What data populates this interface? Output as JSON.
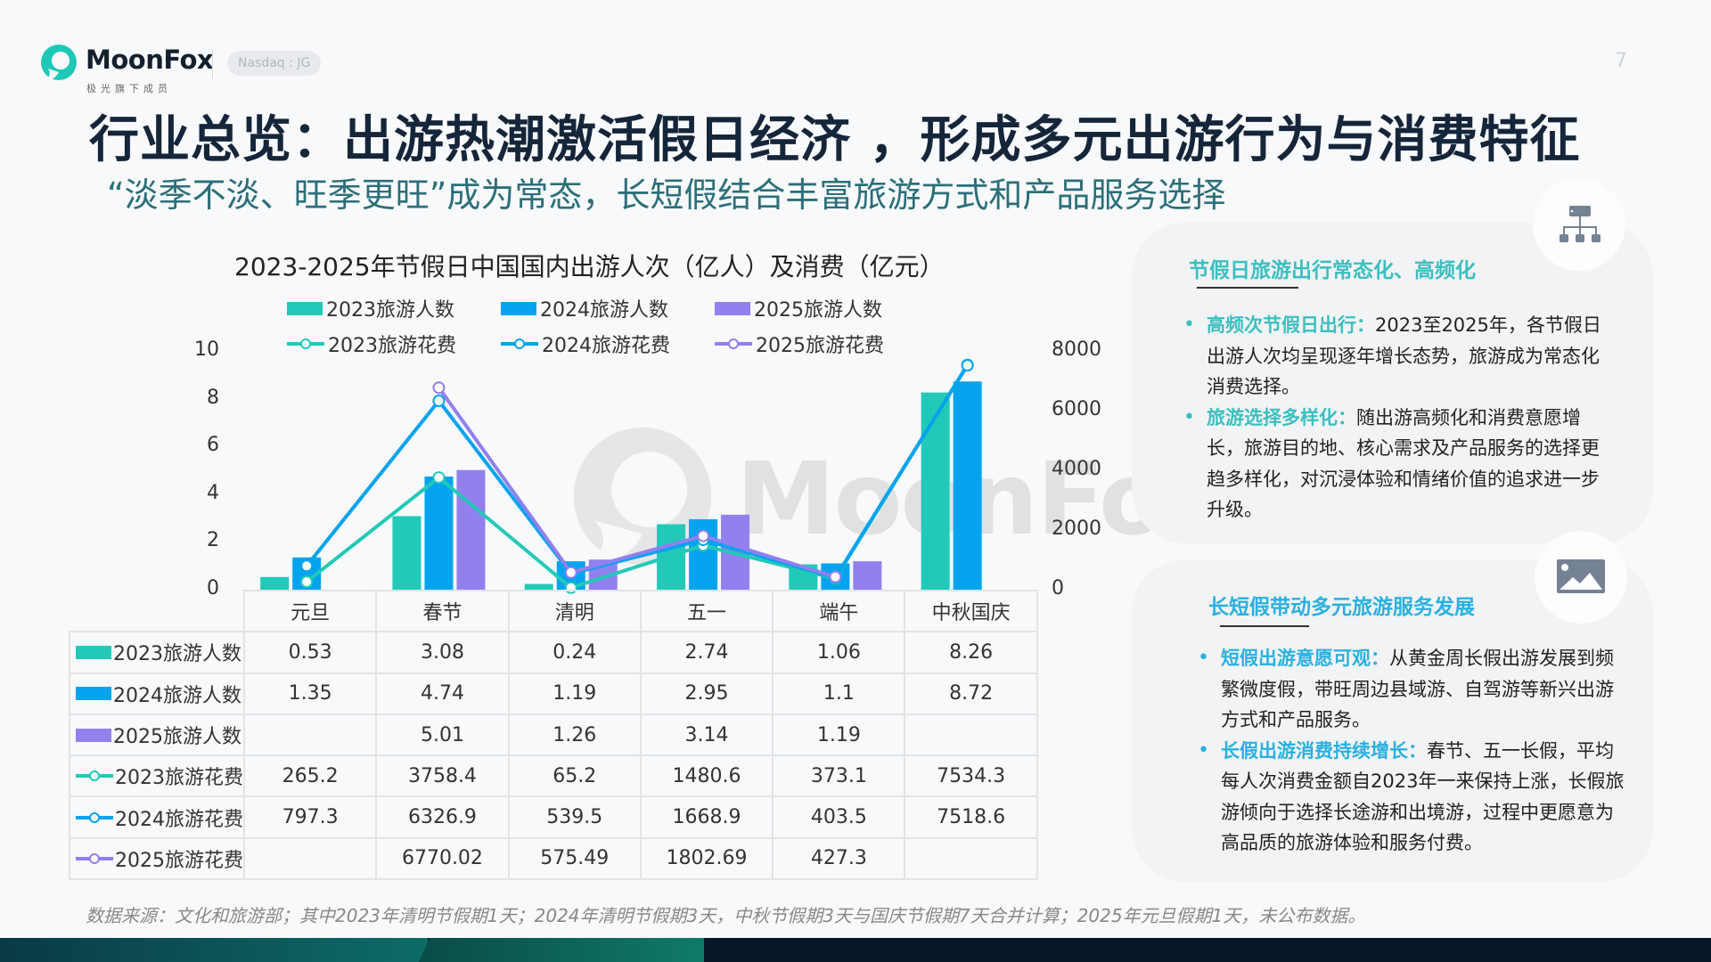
{
  "header": {
    "brand": "MoonFox",
    "brand_sub": "极光旗下成员",
    "ticker": "Nasdaq : JG",
    "page_number": "7",
    "title": "行业总览：出游热潮激活假日经济 ，形成多元出游行为与消费特征",
    "subtitle": "“淡季不淡、旺季更旺”成为常态，长短假结合丰富旅游方式和产品服务选择"
  },
  "colors": {
    "c2023": "#22c9b8",
    "c2024": "#04a3ee",
    "c2025": "#9180ee",
    "title": "#15253a",
    "subtitle": "#2b6f7a",
    "accent_teal": "#3bbfc0",
    "accent_blue": "#2ab0e0"
  },
  "chart": {
    "title": "2023-2025年节假日中国国内出游人次（亿人）及消费（亿元）",
    "watermark": "MoonFox",
    "left_axis_ticks": [
      "10",
      "8",
      "6",
      "4",
      "2",
      "0"
    ],
    "right_axis_ticks": [
      "8000",
      "6000",
      "4000",
      "2000",
      "0"
    ],
    "legend": [
      {
        "label": "2023旅游人数",
        "kind": "bar",
        "color": "#22c9b8"
      },
      {
        "label": "2024旅游人数",
        "kind": "bar",
        "color": "#04a3ee"
      },
      {
        "label": "2025旅游人数",
        "kind": "bar",
        "color": "#9180ee"
      },
      {
        "label": "2023旅游花费",
        "kind": "line",
        "color": "#22c9b8"
      },
      {
        "label": "2024旅游花费",
        "kind": "line",
        "color": "#04a3ee"
      },
      {
        "label": "2025旅游花费",
        "kind": "line",
        "color": "#9180ee"
      }
    ],
    "table": {
      "columns": [
        "元旦",
        "春节",
        "清明",
        "五一",
        "端午",
        "中秋国庆"
      ],
      "rows": [
        {
          "label": "2023旅游人数",
          "values": [
            "0.53",
            "3.08",
            "0.24",
            "2.74",
            "1.06",
            "8.26"
          ]
        },
        {
          "label": "2024旅游人数",
          "values": [
            "1.35",
            "4.74",
            "1.19",
            "2.95",
            "1.1",
            "8.72"
          ]
        },
        {
          "label": "2025旅游人数",
          "values": [
            "",
            "5.01",
            "1.26",
            "3.14",
            "1.19",
            ""
          ]
        },
        {
          "label": "2023旅游花费",
          "values": [
            "265.2",
            "3758.4",
            "65.2",
            "1480.6",
            "373.1",
            "7534.3"
          ]
        },
        {
          "label": "2024旅游花费",
          "values": [
            "797.3",
            "6326.9",
            "539.5",
            "1668.9",
            "403.5",
            "7518.6"
          ]
        },
        {
          "label": "2025旅游花费",
          "values": [
            "",
            "6770.02",
            "575.49",
            "1802.69",
            "427.3",
            ""
          ]
        }
      ]
    }
  },
  "chart_data": {
    "type": "bar",
    "title": "2023-2025年节假日中国国内出游人次（亿人）及消费（亿元）",
    "categories": [
      "元旦",
      "春节",
      "清明",
      "五一",
      "端午",
      "中秋国庆"
    ],
    "xlabel": "",
    "ylabel": "出游人次（亿人）",
    "y2label": "消费（亿元）",
    "ylim": [
      0,
      10
    ],
    "y2lim": [
      0,
      8000
    ],
    "grid": false,
    "legend_position": "top",
    "series": [
      {
        "name": "2023旅游人数",
        "type": "bar",
        "axis": "left",
        "values": [
          0.53,
          3.08,
          0.24,
          2.74,
          1.06,
          8.26
        ]
      },
      {
        "name": "2024旅游人数",
        "type": "bar",
        "axis": "left",
        "values": [
          1.35,
          4.74,
          1.19,
          2.95,
          1.1,
          8.72
        ]
      },
      {
        "name": "2025旅游人数",
        "type": "bar",
        "axis": "left",
        "values": [
          null,
          5.01,
          1.26,
          3.14,
          1.19,
          null
        ]
      },
      {
        "name": "2023旅游花费",
        "type": "line",
        "axis": "right",
        "values": [
          265.2,
          3758.4,
          65.2,
          1480.6,
          373.1,
          7534.3
        ]
      },
      {
        "name": "2024旅游花费",
        "type": "line",
        "axis": "right",
        "values": [
          797.3,
          6326.9,
          539.5,
          1668.9,
          403.5,
          7518.6
        ]
      },
      {
        "name": "2025旅游花费",
        "type": "line",
        "axis": "right",
        "values": [
          null,
          6770.02,
          575.49,
          1802.69,
          427.3,
          null
        ]
      }
    ]
  },
  "panels": [
    {
      "heading": "节假日旅游出行常态化、高频化",
      "icon": "hierarchy-icon",
      "bullets": [
        {
          "key": " 高频次节假日出行：",
          "text": "2023至2025年，各节假日出游人次均呈现逐年增长态势，旅游成为常态化消费选择。"
        },
        {
          "key": "旅游选择多样化：",
          "text": "随出游高频化和消费意愿增长，旅游目的地、核心需求及产品服务的选择更趋多样化，对沉浸体验和情绪价值的追求进一步升级。"
        }
      ]
    },
    {
      "heading": "长短假带动多元旅游服务发展",
      "icon": "image-icon",
      "bullets": [
        {
          "key": "短假出游意愿可观：",
          "text": "从黄金周长假出游发展到频繁微度假，带旺周边县域游、自驾游等新兴出游方式和产品服务。"
        },
        {
          "key": "长假出游消费持续增长：",
          "text": "春节、五一长假，平均每人次消费金额自2023年一来保持上涨，长假旅游倾向于选择长途游和出境游，过程中更愿意为高品质的旅游体验和服务付费。"
        }
      ]
    }
  ],
  "footer": {
    "source": "数据来源：文化和旅游部；其中2023年清明节假期1天；2024年清明节假期3天，中秋节假期3天与国庆节假期7天合并计算；2025年元旦假期1天，未公布数据。"
  }
}
